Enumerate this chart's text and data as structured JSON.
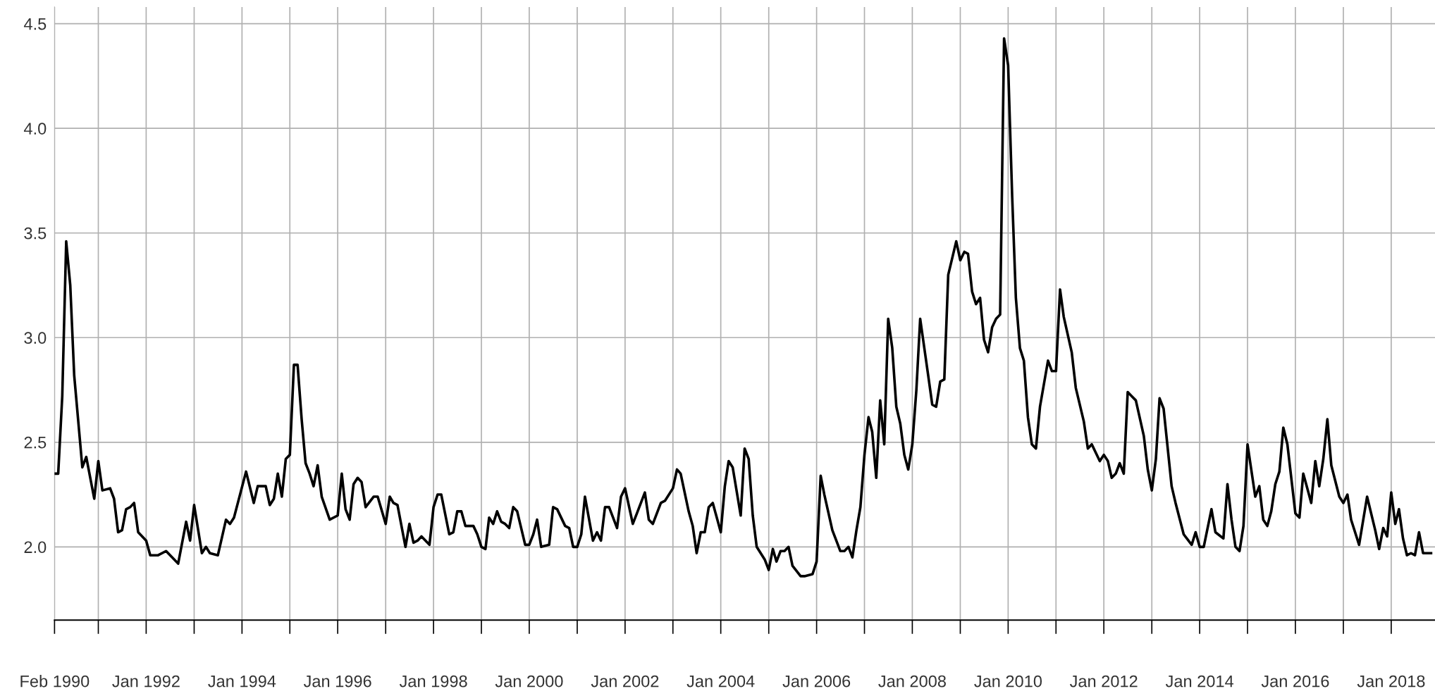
{
  "chart_data": {
    "type": "line",
    "x": [
      "1990-02",
      "1990-03",
      "1990-04",
      "1990-05",
      "1990-06",
      "1990-07",
      "1990-09",
      "1990-10",
      "1990-12",
      "1991-01",
      "1991-02",
      "1991-04",
      "1991-05",
      "1991-06",
      "1991-07",
      "1991-08",
      "1991-09",
      "1991-10",
      "1991-11",
      "1992-01",
      "1992-02",
      "1992-04",
      "1992-06",
      "1992-09",
      "1992-11",
      "1992-12",
      "1993-01",
      "1993-03",
      "1993-04",
      "1993-05",
      "1993-07",
      "1993-09",
      "1993-10",
      "1993-11",
      "1994-02",
      "1994-04",
      "1994-05",
      "1994-07",
      "1994-08",
      "1994-09",
      "1994-10",
      "1994-11",
      "1994-12",
      "1995-01",
      "1995-02",
      "1995-03",
      "1995-04",
      "1995-05",
      "1995-06",
      "1995-07",
      "1995-08",
      "1995-09",
      "1995-11",
      "1996-01",
      "1996-02",
      "1996-03",
      "1996-04",
      "1996-05",
      "1996-06",
      "1996-07",
      "1996-08",
      "1996-10",
      "1996-11",
      "1997-01",
      "1997-02",
      "1997-03",
      "1997-04",
      "1997-06",
      "1997-07",
      "1997-08",
      "1997-09",
      "1997-10",
      "1997-12",
      "1998-01",
      "1998-02",
      "1998-03",
      "1998-05",
      "1998-06",
      "1998-07",
      "1998-08",
      "1998-09",
      "1998-11",
      "1998-12",
      "1999-01",
      "1999-02",
      "1999-03",
      "1999-04",
      "1999-05",
      "1999-06",
      "1999-07",
      "1999-08",
      "1999-09",
      "1999-10",
      "1999-12",
      "2000-01",
      "2000-02",
      "2000-03",
      "2000-04",
      "2000-06",
      "2000-07",
      "2000-08",
      "2000-10",
      "2000-11",
      "2000-12",
      "2001-01",
      "2001-02",
      "2001-03",
      "2001-05",
      "2001-06",
      "2001-07",
      "2001-08",
      "2001-09",
      "2001-11",
      "2001-12",
      "2002-01",
      "2002-03",
      "2002-04",
      "2002-06",
      "2002-07",
      "2002-08",
      "2002-10",
      "2002-11",
      "2003-01",
      "2003-02",
      "2003-03",
      "2003-05",
      "2003-06",
      "2003-07",
      "2003-08",
      "2003-09",
      "2003-10",
      "2003-11",
      "2004-01",
      "2004-02",
      "2004-03",
      "2004-04",
      "2004-06",
      "2004-07",
      "2004-08",
      "2004-09",
      "2004-10",
      "2004-12",
      "2005-01",
      "2005-02",
      "2005-03",
      "2005-04",
      "2005-05",
      "2005-06",
      "2005-07",
      "2005-09",
      "2005-10",
      "2005-12",
      "2006-01",
      "2006-02",
      "2006-03",
      "2006-05",
      "2006-07",
      "2006-08",
      "2006-09",
      "2006-10",
      "2006-11",
      "2006-12",
      "2007-01",
      "2007-02",
      "2007-03",
      "2007-04",
      "2007-05",
      "2007-06",
      "2007-07",
      "2007-08",
      "2007-09",
      "2007-10",
      "2007-11",
      "2007-12",
      "2008-01",
      "2008-02",
      "2008-03",
      "2008-05",
      "2008-06",
      "2008-07",
      "2008-08",
      "2008-09",
      "2008-10",
      "2008-12",
      "2009-01",
      "2009-02",
      "2009-03",
      "2009-04",
      "2009-05",
      "2009-06",
      "2009-07",
      "2009-08",
      "2009-09",
      "2009-10",
      "2009-11",
      "2009-12",
      "2010-01",
      "2010-02",
      "2010-03",
      "2010-04",
      "2010-05",
      "2010-06",
      "2010-07",
      "2010-08",
      "2010-09",
      "2010-11",
      "2010-12",
      "2011-01",
      "2011-02",
      "2011-03",
      "2011-05",
      "2011-06",
      "2011-08",
      "2011-09",
      "2011-10",
      "2011-12",
      "2012-01",
      "2012-02",
      "2012-03",
      "2012-04",
      "2012-05",
      "2012-06",
      "2012-07",
      "2012-08",
      "2012-09",
      "2012-11",
      "2012-12",
      "2013-01",
      "2013-02",
      "2013-03",
      "2013-04",
      "2013-06",
      "2013-07",
      "2013-09",
      "2013-11",
      "2013-12",
      "2014-01",
      "2014-02",
      "2014-04",
      "2014-05",
      "2014-07",
      "2014-08",
      "2014-09",
      "2014-10",
      "2014-11",
      "2014-12",
      "2015-01",
      "2015-03",
      "2015-04",
      "2015-05",
      "2015-06",
      "2015-07",
      "2015-08",
      "2015-09",
      "2015-10",
      "2015-11",
      "2016-01",
      "2016-02",
      "2016-03",
      "2016-04",
      "2016-05",
      "2016-06",
      "2016-07",
      "2016-08",
      "2016-09",
      "2016-10",
      "2016-12",
      "2017-01",
      "2017-02",
      "2017-03",
      "2017-05",
      "2017-07",
      "2017-09",
      "2017-10",
      "2017-11",
      "2017-12",
      "2018-01",
      "2018-02",
      "2018-03",
      "2018-04",
      "2018-05",
      "2018-06",
      "2018-07",
      "2018-08",
      "2018-09",
      "2018-10",
      "2018-11"
    ],
    "series": [
      {
        "color": "#000000",
        "values": [
          2.35,
          2.35,
          2.72,
          3.46,
          3.25,
          2.82,
          2.38,
          2.43,
          2.23,
          2.41,
          2.27,
          2.28,
          2.23,
          2.07,
          2.08,
          2.18,
          2.19,
          2.21,
          2.07,
          2.03,
          1.96,
          1.96,
          1.98,
          1.92,
          2.12,
          2.03,
          2.2,
          1.97,
          2.0,
          1.97,
          1.96,
          2.13,
          2.11,
          2.14,
          2.36,
          2.21,
          2.29,
          2.29,
          2.2,
          2.23,
          2.35,
          2.24,
          2.42,
          2.44,
          2.87,
          2.87,
          2.61,
          2.4,
          2.35,
          2.29,
          2.39,
          2.24,
          2.13,
          2.15,
          2.35,
          2.18,
          2.13,
          2.3,
          2.33,
          2.31,
          2.19,
          2.24,
          2.24,
          2.11,
          2.24,
          2.21,
          2.2,
          2.0,
          2.11,
          2.02,
          2.03,
          2.05,
          2.01,
          2.19,
          2.25,
          2.25,
          2.06,
          2.07,
          2.17,
          2.17,
          2.1,
          2.1,
          2.06,
          2.0,
          1.99,
          2.14,
          2.11,
          2.17,
          2.12,
          2.11,
          2.09,
          2.19,
          2.17,
          2.01,
          2.01,
          2.06,
          2.13,
          2.0,
          2.01,
          2.19,
          2.18,
          2.1,
          2.09,
          2.0,
          2.0,
          2.06,
          2.24,
          2.03,
          2.07,
          2.03,
          2.19,
          2.19,
          2.09,
          2.24,
          2.28,
          2.11,
          2.16,
          2.26,
          2.13,
          2.11,
          2.21,
          2.22,
          2.28,
          2.37,
          2.35,
          2.17,
          2.1,
          1.97,
          2.07,
          2.07,
          2.19,
          2.21,
          2.07,
          2.29,
          2.41,
          2.38,
          2.15,
          2.47,
          2.42,
          2.15,
          2.0,
          1.94,
          1.89,
          1.99,
          1.93,
          1.98,
          1.98,
          2.0,
          1.91,
          1.86,
          1.86,
          1.87,
          1.93,
          2.34,
          2.25,
          2.08,
          1.98,
          1.98,
          2.0,
          1.95,
          2.08,
          2.19,
          2.44,
          2.62,
          2.55,
          2.33,
          2.7,
          2.49,
          3.09,
          2.95,
          2.67,
          2.59,
          2.44,
          2.37,
          2.49,
          2.75,
          3.09,
          2.82,
          2.68,
          2.67,
          2.79,
          2.8,
          3.3,
          3.46,
          3.37,
          3.41,
          3.4,
          3.22,
          3.16,
          3.19,
          2.99,
          2.93,
          3.05,
          3.09,
          3.11,
          4.43,
          4.3,
          3.67,
          3.19,
          2.95,
          2.89,
          2.62,
          2.49,
          2.47,
          2.67,
          2.89,
          2.84,
          2.84,
          3.23,
          3.1,
          2.93,
          2.76,
          2.6,
          2.47,
          2.49,
          2.41,
          2.44,
          2.41,
          2.33,
          2.35,
          2.4,
          2.35,
          2.74,
          2.72,
          2.7,
          2.53,
          2.37,
          2.27,
          2.42,
          2.71,
          2.66,
          2.29,
          2.21,
          2.06,
          2.01,
          2.07,
          2.0,
          2.0,
          2.18,
          2.07,
          2.04,
          2.3,
          2.13,
          2.0,
          1.98,
          2.1,
          2.49,
          2.24,
          2.29,
          2.13,
          2.1,
          2.17,
          2.3,
          2.36,
          2.57,
          2.49,
          2.16,
          2.14,
          2.35,
          2.28,
          2.21,
          2.41,
          2.29,
          2.42,
          2.61,
          2.39,
          2.24,
          2.21,
          2.25,
          2.13,
          2.01,
          2.24,
          2.08,
          1.99,
          2.09,
          2.05,
          2.26,
          2.11,
          2.18,
          2.04,
          1.96,
          1.97,
          1.96,
          2.07,
          1.97,
          1.97,
          1.97
        ]
      }
    ],
    "xlim": [
      "1990-02",
      "2018-12"
    ],
    "xticks": [
      {
        "value": "1990-02",
        "label": "Feb 1990"
      },
      {
        "value": "1991-01",
        "label": null
      },
      {
        "value": "1992-01",
        "label": "Jan 1992"
      },
      {
        "value": "1993-01",
        "label": null
      },
      {
        "value": "1994-01",
        "label": "Jan 1994"
      },
      {
        "value": "1995-01",
        "label": null
      },
      {
        "value": "1996-01",
        "label": "Jan 1996"
      },
      {
        "value": "1997-01",
        "label": null
      },
      {
        "value": "1998-01",
        "label": "Jan 1998"
      },
      {
        "value": "1999-01",
        "label": null
      },
      {
        "value": "2000-01",
        "label": "Jan 2000"
      },
      {
        "value": "2001-01",
        "label": null
      },
      {
        "value": "2002-01",
        "label": "Jan 2002"
      },
      {
        "value": "2003-01",
        "label": null
      },
      {
        "value": "2004-01",
        "label": "Jan 2004"
      },
      {
        "value": "2005-01",
        "label": null
      },
      {
        "value": "2006-01",
        "label": "Jan 2006"
      },
      {
        "value": "2007-01",
        "label": null
      },
      {
        "value": "2008-01",
        "label": "Jan 2008"
      },
      {
        "value": "2009-01",
        "label": null
      },
      {
        "value": "2010-01",
        "label": "Jan 2010"
      },
      {
        "value": "2011-01",
        "label": null
      },
      {
        "value": "2012-01",
        "label": "Jan 2012"
      },
      {
        "value": "2013-01",
        "label": null
      },
      {
        "value": "2014-01",
        "label": "Jan 2014"
      },
      {
        "value": "2015-01",
        "label": null
      },
      {
        "value": "2016-01",
        "label": "Jan 2016"
      },
      {
        "value": "2017-01",
        "label": null
      },
      {
        "value": "2018-01",
        "label": "Jan 2018"
      }
    ],
    "ylim": [
      1.65,
      4.58
    ],
    "yticks": [
      {
        "value": 2,
        "label": "2.0"
      },
      {
        "value": 2.5,
        "label": "2.5"
      },
      {
        "value": 3,
        "label": "3.0"
      },
      {
        "value": 3.5,
        "label": "3.5"
      },
      {
        "value": 4,
        "label": "4.0"
      },
      {
        "value": 4.5,
        "label": "4.5"
      }
    ],
    "grid": true,
    "marker": "none",
    "line_style": "solid"
  }
}
